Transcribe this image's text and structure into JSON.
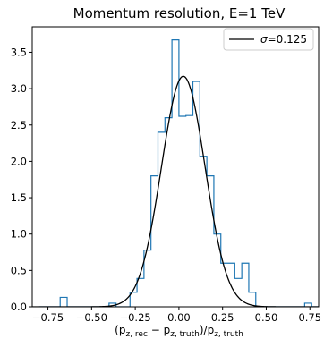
{
  "chart_data": {
    "type": "histogram",
    "title": "Momentum resolution, E=1 TeV",
    "xlabel": "(p_z,rec − p_z,truth)/p_z,truth",
    "ylabel": "",
    "xlim": [
      -0.84,
      0.8
    ],
    "ylim": [
      0.0,
      3.85
    ],
    "x_ticks": [
      -0.75,
      -0.5,
      -0.25,
      0.0,
      0.25,
      0.5,
      0.75
    ],
    "x_tick_labels": [
      "−0.75",
      "−0.50",
      "−0.25",
      "0.00",
      "0.25",
      "0.50",
      "0.75"
    ],
    "y_ticks": [
      0.0,
      0.5,
      1.0,
      1.5,
      2.0,
      2.5,
      3.0,
      3.5
    ],
    "y_tick_labels": [
      "0.0",
      "0.5",
      "1.0",
      "1.5",
      "2.0",
      "2.5",
      "3.0",
      "3.5"
    ],
    "grid": false,
    "legend_position": "top-right",
    "histogram": {
      "bin_edges": [
        -0.8,
        -0.76,
        -0.72,
        -0.68,
        -0.64,
        -0.6,
        -0.56,
        -0.52,
        -0.48,
        -0.44,
        -0.4,
        -0.36,
        -0.32,
        -0.28,
        -0.24,
        -0.2,
        -0.16,
        -0.12,
        -0.08,
        -0.04,
        0.0,
        0.04,
        0.08,
        0.12,
        0.16,
        0.2,
        0.24,
        0.28,
        0.32,
        0.36,
        0.4,
        0.44,
        0.48,
        0.52,
        0.56,
        0.6,
        0.64,
        0.68,
        0.72,
        0.76,
        0.8
      ],
      "counts": [
        0,
        0,
        0,
        0.13,
        0,
        0,
        0,
        0,
        0,
        0,
        0.05,
        0,
        0,
        0.2,
        0.39,
        0.78,
        1.8,
        2.4,
        2.6,
        3.67,
        2.62,
        2.63,
        3.1,
        2.07,
        1.8,
        1.0,
        0.6,
        0.6,
        0.39,
        0.6,
        0.2,
        0,
        0,
        0,
        0,
        0,
        0,
        0,
        0.05,
        0
      ],
      "color": "#1f77b4"
    },
    "series": [
      {
        "name": "σ=0.125",
        "type": "gaussian",
        "mu": 0.025,
        "sigma": 0.125,
        "peak": 3.17,
        "color": "#000000"
      }
    ]
  }
}
